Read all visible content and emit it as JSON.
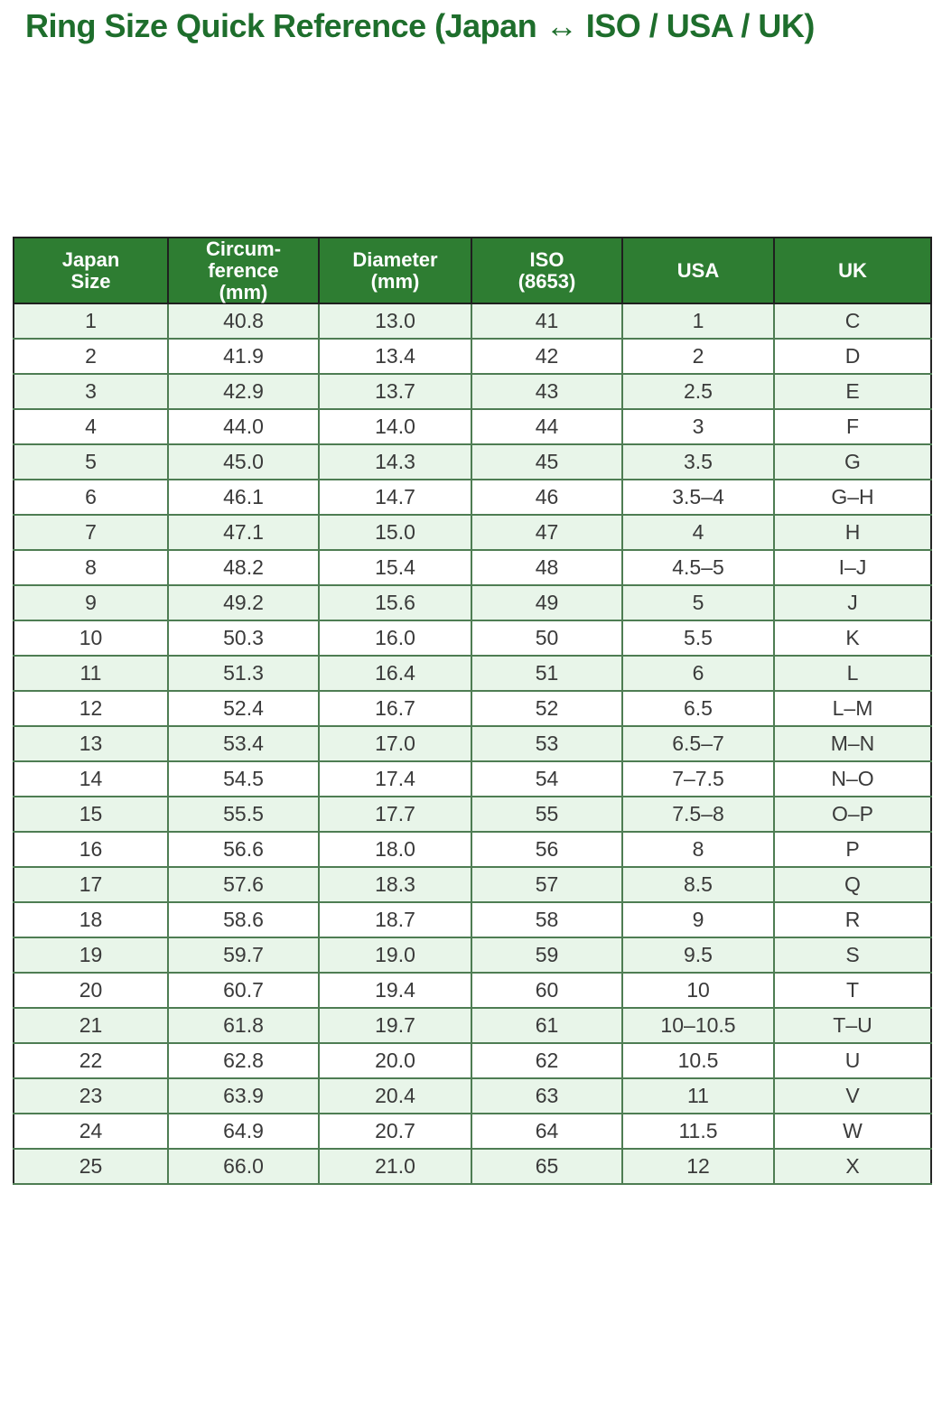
{
  "title": "Ring Size Quick Reference (Japan ↔ ISO / USA / UK)",
  "colors": {
    "title_green": "#1e6e2c",
    "header_bg": "#2e7d32",
    "header_text": "#ffffff",
    "row_alt_bg": "#e8f5e9",
    "row_bg": "#ffffff",
    "grid_green": "#4e7d53",
    "outer_border": "#262626",
    "cell_text": "#3a3a3a"
  },
  "chart_data": {
    "type": "table",
    "title": "Ring Size Quick Reference (Japan ↔ ISO / USA / UK)",
    "columns": [
      "Japan Size",
      "Circumference (mm)",
      "Diameter (mm)",
      "ISO (8653)",
      "USA",
      "UK"
    ],
    "columns_display": [
      "Japan\nSize",
      "Circum-\nference\n(mm)",
      "Diameter\n(mm)",
      "ISO\n(8653)",
      "USA",
      "UK"
    ],
    "rows": [
      [
        "1",
        "40.8",
        "13.0",
        "41",
        "1",
        "C"
      ],
      [
        "2",
        "41.9",
        "13.4",
        "42",
        "2",
        "D"
      ],
      [
        "3",
        "42.9",
        "13.7",
        "43",
        "2.5",
        "E"
      ],
      [
        "4",
        "44.0",
        "14.0",
        "44",
        "3",
        "F"
      ],
      [
        "5",
        "45.0",
        "14.3",
        "45",
        "3.5",
        "G"
      ],
      [
        "6",
        "46.1",
        "14.7",
        "46",
        "3.5–4",
        "G–H"
      ],
      [
        "7",
        "47.1",
        "15.0",
        "47",
        "4",
        "H"
      ],
      [
        "8",
        "48.2",
        "15.4",
        "48",
        "4.5–5",
        "I–J"
      ],
      [
        "9",
        "49.2",
        "15.6",
        "49",
        "5",
        "J"
      ],
      [
        "10",
        "50.3",
        "16.0",
        "50",
        "5.5",
        "K"
      ],
      [
        "11",
        "51.3",
        "16.4",
        "51",
        "6",
        "L"
      ],
      [
        "12",
        "52.4",
        "16.7",
        "52",
        "6.5",
        "L–M"
      ],
      [
        "13",
        "53.4",
        "17.0",
        "53",
        "6.5–7",
        "M–N"
      ],
      [
        "14",
        "54.5",
        "17.4",
        "54",
        "7–7.5",
        "N–O"
      ],
      [
        "15",
        "55.5",
        "17.7",
        "55",
        "7.5–8",
        "O–P"
      ],
      [
        "16",
        "56.6",
        "18.0",
        "56",
        "8",
        "P"
      ],
      [
        "17",
        "57.6",
        "18.3",
        "57",
        "8.5",
        "Q"
      ],
      [
        "18",
        "58.6",
        "18.7",
        "58",
        "9",
        "R"
      ],
      [
        "19",
        "59.7",
        "19.0",
        "59",
        "9.5",
        "S"
      ],
      [
        "20",
        "60.7",
        "19.4",
        "60",
        "10",
        "T"
      ],
      [
        "21",
        "61.8",
        "19.7",
        "61",
        "10–10.5",
        "T–U"
      ],
      [
        "22",
        "62.8",
        "20.0",
        "62",
        "10.5",
        "U"
      ],
      [
        "23",
        "63.9",
        "20.4",
        "63",
        "11",
        "V"
      ],
      [
        "24",
        "64.9",
        "20.7",
        "64",
        "11.5",
        "W"
      ],
      [
        "25",
        "66.0",
        "21.0",
        "65",
        "12",
        "X"
      ]
    ]
  }
}
